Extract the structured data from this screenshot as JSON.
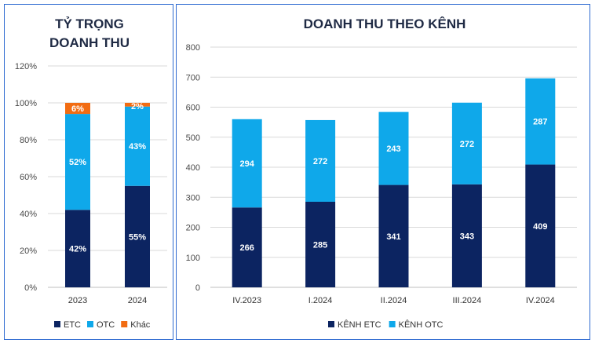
{
  "colors": {
    "etc": "#0c2461",
    "otc": "#0fa8ea",
    "other": "#f26c12",
    "grid": "#d9d9d9",
    "border": "#2e6ad1"
  },
  "chart_data": [
    {
      "type": "bar",
      "stacked": true,
      "title": [
        "TỶ TRỌNG",
        "DOANH THU"
      ],
      "categories": [
        "2023",
        "2024"
      ],
      "series": [
        {
          "name": "ETC",
          "values": [
            42,
            55
          ],
          "labels": [
            "42%",
            "55%"
          ]
        },
        {
          "name": "OTC",
          "values": [
            52,
            43
          ],
          "labels": [
            "52%",
            "43%"
          ]
        },
        {
          "name": "Khác",
          "values": [
            6,
            2
          ],
          "labels": [
            "6%",
            "2%"
          ]
        }
      ],
      "yticks": [
        "0%",
        "20%",
        "40%",
        "60%",
        "80%",
        "100%",
        "120%"
      ],
      "ylim": [
        0,
        120
      ],
      "legend": "bottom"
    },
    {
      "type": "bar",
      "stacked": true,
      "title": [
        "DOANH THU THEO KÊNH"
      ],
      "categories": [
        "IV.2023",
        "I.2024",
        "II.2024",
        "III.2024",
        "IV.2024"
      ],
      "series": [
        {
          "name": "KÊNH ETC",
          "values": [
            266,
            285,
            341,
            343,
            409
          ],
          "labels": [
            "266",
            "285",
            "341",
            "343",
            "409"
          ]
        },
        {
          "name": "KÊNH OTC",
          "values": [
            294,
            272,
            243,
            272,
            287
          ],
          "labels": [
            "294",
            "272",
            "243",
            "272",
            "287"
          ]
        }
      ],
      "yticks": [
        "0",
        "100",
        "200",
        "300",
        "400",
        "500",
        "600",
        "700",
        "800"
      ],
      "ylim": [
        0,
        800
      ],
      "legend": "bottom"
    }
  ]
}
